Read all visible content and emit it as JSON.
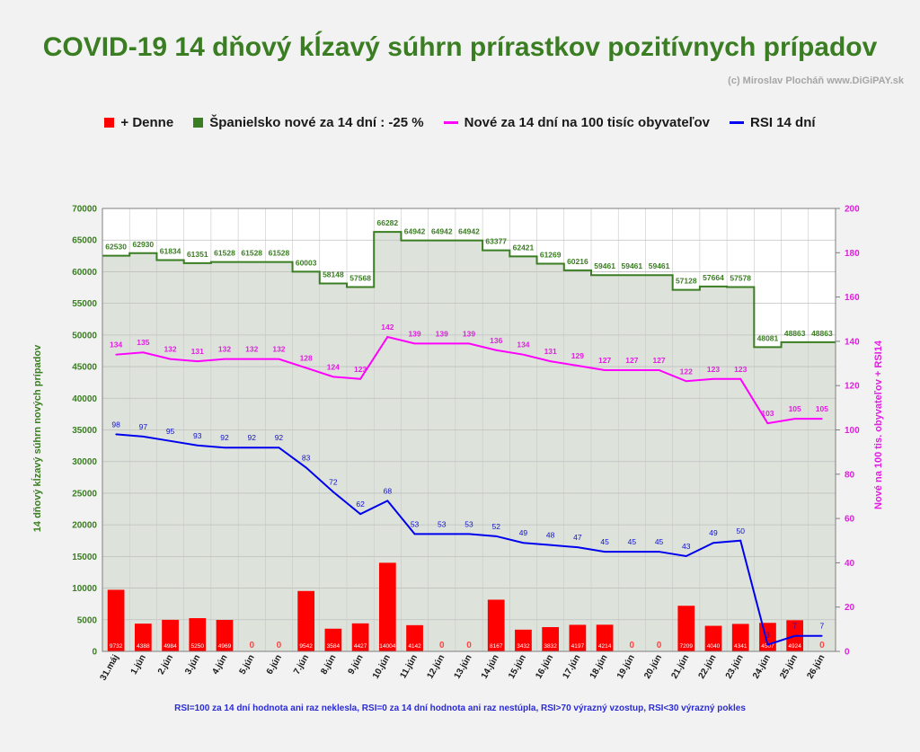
{
  "title": "COVID-19 14 dňový kĺzavý súhrn prírastkov pozitívnych prípadov",
  "credit": "(c) Miroslav Plocháň  www.DiGiPAY.sk",
  "legend": [
    {
      "label": "+ Denne",
      "color": "#ff0000",
      "shape": "box"
    },
    {
      "label": "Španielsko nové za 14 dní : -25 %",
      "color": "#3a7d22",
      "shape": "box"
    },
    {
      "label": "Nové za 14 dní na 100 tisíc obyvateľov",
      "color": "#ff00ff",
      "shape": "line"
    },
    {
      "label": "RSI 14 dní",
      "color": "#0000ee",
      "shape": "line"
    }
  ],
  "footnote": "RSI=100 za 14 dní hodnota ani raz neklesla, RSI=0 za 14 dní hodnota ani raz nestúpla, RSI>70 výrazný  vzostup, RSI<30 výrazný pokles",
  "chart_data": {
    "type": "bar",
    "categories": [
      "31.máj",
      "1.jún",
      "2.jún",
      "3.jún",
      "4.jún",
      "5.jún",
      "6.jún",
      "7.jún",
      "8.jún",
      "9.jún",
      "10.jún",
      "11.jún",
      "12.jún",
      "13.jún",
      "14.jún",
      "15.jún",
      "16.jún",
      "17.jún",
      "18.jún",
      "19.jún",
      "20.jún",
      "21.jún",
      "22.jún",
      "23.jún",
      "24.jún",
      "25.jún",
      "26.jún"
    ],
    "ylabel": "14 dňový kĺzavý  súhrn nových prípadov",
    "y2label": "Nové na 100 tis. obyvateľov + RSI14",
    "ylim": [
      0,
      70000
    ],
    "y_ticks": [
      0,
      5000,
      10000,
      15000,
      20000,
      25000,
      30000,
      35000,
      40000,
      45000,
      50000,
      55000,
      60000,
      65000,
      70000
    ],
    "y2lim": [
      0,
      200
    ],
    "y2_ticks": [
      0,
      20,
      40,
      60,
      80,
      100,
      120,
      140,
      160,
      180,
      200
    ],
    "grid": true,
    "legend_position": "top",
    "series": [
      {
        "name": "+ Denne",
        "type": "bar",
        "axis": "left",
        "color": "#ff0000",
        "values": [
          9732,
          4388,
          4984,
          5250,
          4969,
          0,
          0,
          9542,
          3584,
          4427,
          14004,
          4142,
          0,
          0,
          8167,
          3432,
          3832,
          4197,
          4214,
          0,
          0,
          7209,
          4040,
          4341,
          4507,
          4924,
          0
        ]
      },
      {
        "name": "Španielsko nové za 14 dní : -25 %",
        "type": "step-area",
        "axis": "left",
        "color": "#3a7d22",
        "values": [
          62530,
          62930,
          61834,
          61351,
          61528,
          61528,
          61528,
          60003,
          58148,
          57568,
          66282,
          64942,
          64942,
          64942,
          63377,
          62421,
          61269,
          60216,
          59461,
          59461,
          59461,
          57128,
          57664,
          57578,
          48081,
          48863,
          48863
        ]
      },
      {
        "name": "Nové za 14 dní na 100 tisíc obyvateľov",
        "type": "line",
        "axis": "right",
        "color": "#ff00ff",
        "values": [
          134,
          135,
          132,
          131,
          132,
          132,
          132,
          128,
          124,
          123,
          142,
          139,
          139,
          139,
          136,
          134,
          131,
          129,
          127,
          127,
          127,
          122,
          123,
          123,
          103,
          105,
          105
        ]
      },
      {
        "name": "RSI 14 dní",
        "type": "line",
        "axis": "right",
        "color": "#0000ee",
        "values": [
          98,
          97,
          95,
          93,
          92,
          92,
          92,
          83,
          72,
          62,
          68,
          53,
          53,
          53,
          52,
          49,
          48,
          47,
          45,
          45,
          45,
          43,
          49,
          50,
          3,
          7,
          7
        ]
      }
    ]
  }
}
